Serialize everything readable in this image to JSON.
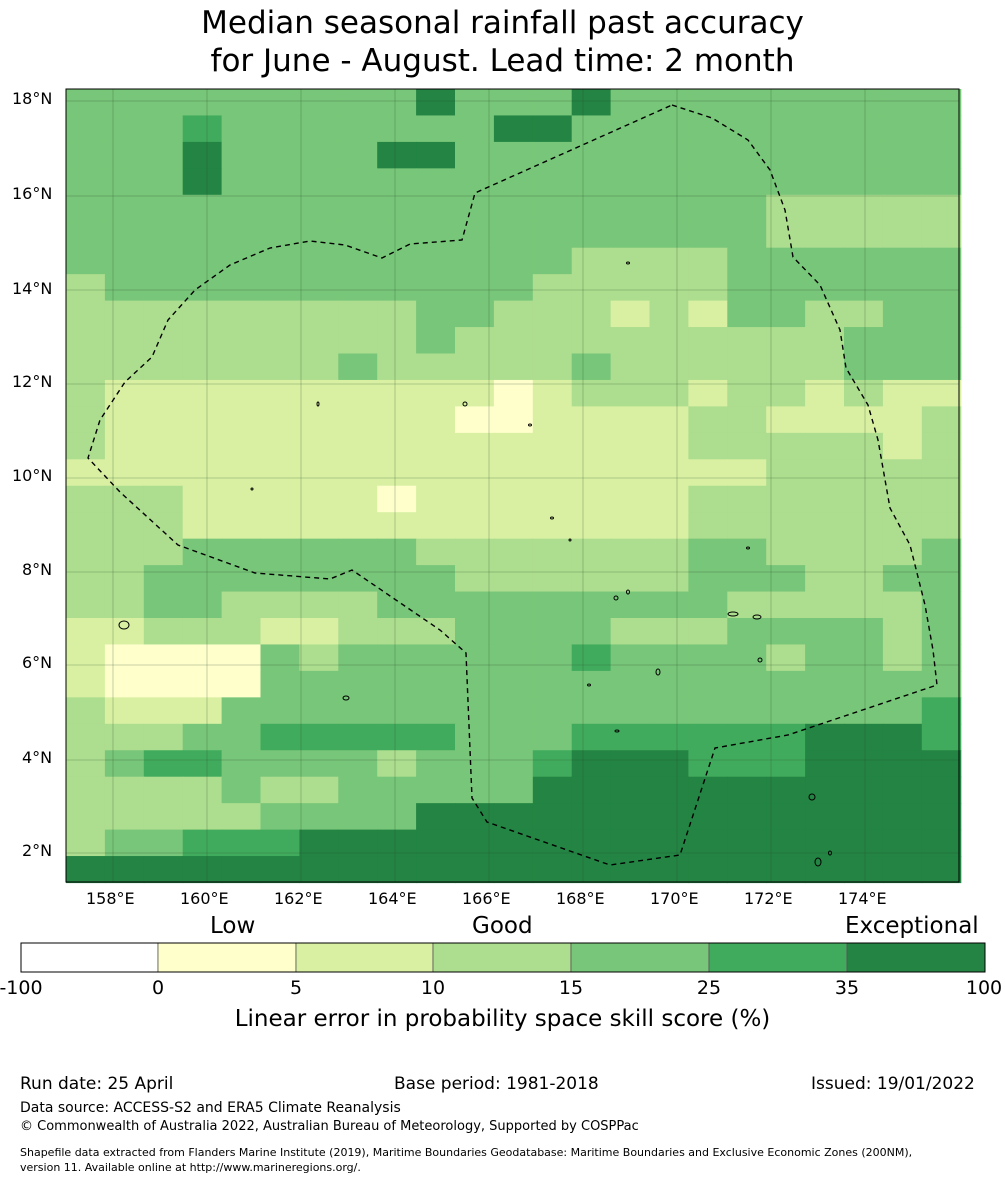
{
  "title": {
    "line1": "Median seasonal rainfall past accuracy",
    "line2": "for June - August. Lead time: 2 month"
  },
  "map": {
    "lat_labels": [
      "18°N",
      "16°N",
      "14°N",
      "12°N",
      "10°N",
      "8°N",
      "6°N",
      "4°N",
      "2°N"
    ],
    "lon_labels": [
      "158°E",
      "160°E",
      "162°E",
      "164°E",
      "166°E",
      "168°E",
      "170°E",
      "172°E",
      "174°E"
    ],
    "lon_range": [
      157,
      176
    ],
    "lat_range": [
      1.4,
      18.4
    ],
    "cell_palette_classes": [
      "0-5",
      "5-10",
      "10-15",
      "15-25",
      "25-35",
      "35-100"
    ],
    "boundary": "dashed maritime boundary (EEZ)"
  },
  "legend": {
    "categories": {
      "low": "Low",
      "good": "Good",
      "exceptional": "Exceptional"
    },
    "tick_labels": [
      "-100",
      "0",
      "5",
      "10",
      "15",
      "25",
      "35",
      "100"
    ],
    "colors": [
      "#ffffff",
      "#ffffcc",
      "#d9f0a3",
      "#addd8e",
      "#78c679",
      "#41ab5d",
      "#238443"
    ],
    "axis_label": "Linear error in probability space skill score (%)"
  },
  "footer": {
    "run_date": "Run date: 25 April",
    "base_period": "Base period: 1981-2018",
    "issued": "Issued: 19/01/2022",
    "data_source": "Data source: ACCESS-S2 and ERA5 Climate Reanalysis",
    "copyright": "© Commonwealth of Australia 2022, Australian Bureau of Meteorology, Supported by COSPPac",
    "shapefile_line1": "Shapefile data extracted from Flanders Marine Institute (2019), Maritime Boundaries Geodatabase: Maritime Boundaries and Exclusive Economic Zones (200NM),",
    "shapefile_line2": "version 11. Available online at http://www.marineregions.org/."
  }
}
